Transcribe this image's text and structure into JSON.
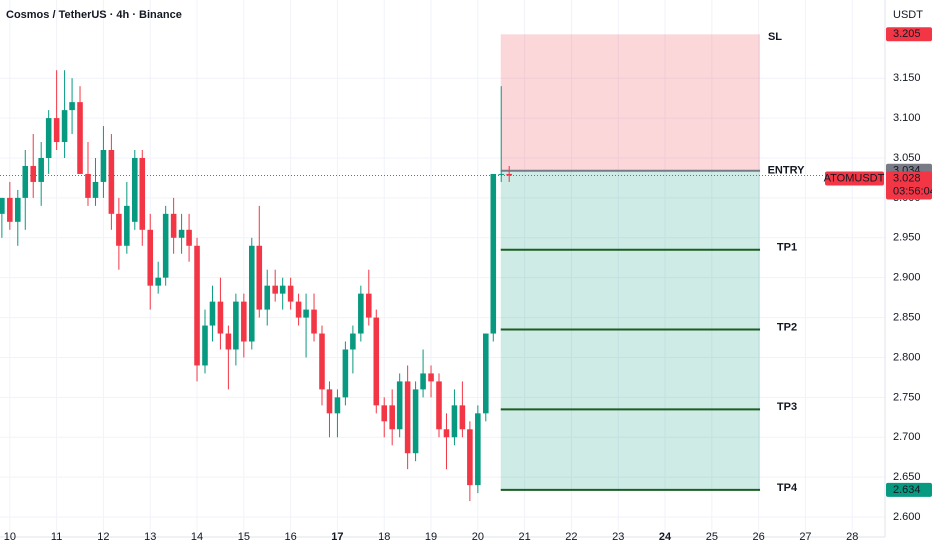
{
  "chart_data": {
    "type": "candlestick",
    "title": "Cosmos / TetherUS · 4h · Binance",
    "currency": "USDT",
    "up_color": "#089981",
    "down_color": "#f23645",
    "x": [
      9.83,
      10.0,
      10.17,
      10.33,
      10.5,
      10.67,
      10.83,
      11.0,
      11.17,
      11.33,
      11.5,
      11.67,
      11.83,
      12.0,
      12.17,
      12.33,
      12.5,
      12.67,
      12.83,
      13.0,
      13.17,
      13.33,
      13.5,
      13.67,
      13.83,
      14.0,
      14.17,
      14.33,
      14.5,
      14.67,
      14.83,
      15.0,
      15.17,
      15.33,
      15.5,
      15.67,
      15.83,
      16.0,
      16.17,
      16.33,
      16.5,
      16.67,
      16.83,
      17.0,
      17.17,
      17.33,
      17.5,
      17.67,
      17.83,
      18.0,
      18.17,
      18.33,
      18.5,
      18.67,
      18.83,
      19.0,
      19.17,
      19.33,
      19.5,
      19.67,
      19.83,
      20.0,
      20.17,
      20.33,
      20.5,
      20.67
    ],
    "open": [
      2.98,
      3.0,
      2.97,
      3.0,
      3.04,
      3.02,
      3.05,
      3.1,
      3.07,
      3.11,
      3.12,
      3.03,
      3.0,
      3.02,
      3.06,
      2.98,
      2.94,
      2.97,
      3.05,
      2.96,
      2.89,
      2.9,
      2.98,
      2.95,
      2.96,
      2.94,
      2.79,
      2.84,
      2.87,
      2.83,
      2.81,
      2.87,
      2.82,
      2.94,
      2.86,
      2.89,
      2.88,
      2.89,
      2.87,
      2.85,
      2.86,
      2.83,
      2.76,
      2.73,
      2.75,
      2.81,
      2.83,
      2.88,
      2.85,
      2.74,
      2.74,
      2.71,
      2.77,
      2.68,
      2.76,
      2.78,
      2.77,
      2.71,
      2.7,
      2.74,
      2.71,
      2.64,
      2.73,
      2.83,
      3.03,
      3.03
    ],
    "high": [
      3.0,
      3.02,
      3.01,
      3.06,
      3.08,
      3.07,
      3.11,
      3.16,
      3.16,
      3.15,
      3.14,
      3.07,
      3.05,
      3.09,
      3.08,
      3.0,
      3.02,
      3.06,
      3.06,
      2.98,
      2.92,
      2.99,
      3.0,
      2.98,
      2.98,
      2.95,
      2.86,
      2.89,
      2.9,
      2.84,
      2.88,
      2.88,
      2.95,
      2.99,
      2.91,
      2.91,
      2.9,
      2.9,
      2.88,
      2.88,
      2.88,
      2.84,
      2.77,
      2.76,
      2.82,
      2.84,
      2.89,
      2.91,
      2.86,
      2.75,
      2.76,
      2.78,
      2.79,
      2.77,
      2.81,
      2.79,
      2.78,
      2.73,
      2.76,
      2.77,
      2.72,
      2.74,
      2.83,
      3.03,
      3.14,
      3.04
    ],
    "low": [
      2.95,
      2.96,
      2.94,
      2.96,
      3.0,
      2.99,
      3.03,
      3.06,
      3.05,
      3.08,
      3.03,
      2.99,
      2.99,
      3.0,
      2.96,
      2.91,
      2.93,
      2.96,
      2.94,
      2.86,
      2.88,
      2.89,
      2.93,
      2.93,
      2.92,
      2.77,
      2.78,
      2.82,
      2.81,
      2.76,
      2.79,
      2.8,
      2.81,
      2.85,
      2.84,
      2.87,
      2.86,
      2.86,
      2.84,
      2.8,
      2.82,
      2.74,
      2.7,
      2.7,
      2.74,
      2.78,
      2.82,
      2.84,
      2.73,
      2.7,
      2.69,
      2.7,
      2.66,
      2.67,
      2.75,
      2.75,
      2.7,
      2.66,
      2.69,
      2.7,
      2.62,
      2.63,
      2.72,
      2.82,
      3.02,
      3.02
    ],
    "close": [
      3.0,
      2.97,
      3.0,
      3.04,
      3.02,
      3.05,
      3.1,
      3.07,
      3.11,
      3.12,
      3.03,
      3.0,
      3.02,
      3.06,
      2.98,
      2.94,
      2.99,
      3.05,
      2.96,
      2.89,
      2.9,
      2.98,
      2.95,
      2.96,
      2.94,
      2.79,
      2.84,
      2.87,
      2.83,
      2.81,
      2.87,
      2.82,
      2.94,
      2.86,
      2.89,
      2.88,
      2.89,
      2.87,
      2.85,
      2.86,
      2.83,
      2.76,
      2.73,
      2.75,
      2.81,
      2.83,
      2.88,
      2.85,
      2.74,
      2.72,
      2.71,
      2.77,
      2.68,
      2.76,
      2.78,
      2.77,
      2.71,
      2.7,
      2.74,
      2.71,
      2.64,
      2.73,
      2.83,
      3.03,
      3.03,
      3.028
    ],
    "xlim": [
      9.79,
      28.7
    ],
    "ylim": [
      2.575,
      3.248
    ],
    "xticks": [
      10,
      11,
      12,
      13,
      14,
      15,
      16,
      17,
      18,
      19,
      20,
      21,
      22,
      23,
      24,
      25,
      26,
      27,
      28
    ],
    "bold_xticks": [
      17,
      24
    ],
    "yticks": [
      {
        "value": 2.6,
        "label": "2.600"
      },
      {
        "value": 2.65,
        "label": "2.650"
      },
      {
        "value": 2.7,
        "label": "2.700"
      },
      {
        "value": 2.75,
        "label": "2.750"
      },
      {
        "value": 2.8,
        "label": "2.800"
      },
      {
        "value": 2.85,
        "label": "2.850"
      },
      {
        "value": 2.9,
        "label": "2.900"
      },
      {
        "value": 2.95,
        "label": "2.950"
      },
      {
        "value": 3.0,
        "label": "3.000"
      },
      {
        "value": 3.05,
        "label": "3.050"
      },
      {
        "value": 3.1,
        "label": "3.100"
      },
      {
        "value": 3.15,
        "label": "3.150"
      }
    ],
    "last_price": {
      "value": 3.028,
      "symbol": "ATOMUSDT",
      "countdown": "03:56:04"
    },
    "position": {
      "x_start": 20.49,
      "x_end": 26.03,
      "stop": {
        "label": "SL",
        "value": 3.205
      },
      "entry": {
        "label": "ENTRY",
        "value": 3.034
      },
      "targets": [
        {
          "label": "TP1",
          "value": 2.935
        },
        {
          "label": "TP2",
          "value": 2.835
        },
        {
          "label": "TP3",
          "value": 2.735
        },
        {
          "label": "TP4",
          "value": 2.634
        }
      ]
    }
  }
}
